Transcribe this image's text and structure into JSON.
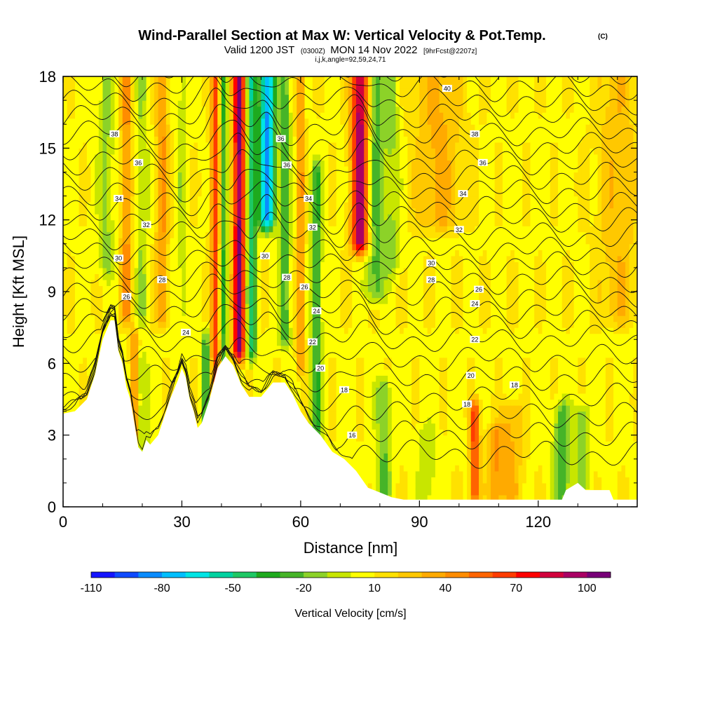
{
  "chart_data": {
    "type": "heatmap",
    "title": "Wind-Parallel Section at Max W: Vertical Velocity & Pot.Temp.",
    "title_mark": "(C)",
    "subtitle_parts": [
      "Valid 1200 JST",
      "(0300Z)",
      "MON 14 Nov 2022",
      "[9hrFcst@2207z]"
    ],
    "subtitle2": "i,j,k,angle=92,59,24,71",
    "xlabel": "Distance [nm]",
    "ylabel": "Height [Kft MSL]",
    "xlim": [
      0,
      145
    ],
    "ylim": [
      0,
      18
    ],
    "x_ticks": [
      0,
      30,
      60,
      90,
      120
    ],
    "y_ticks": [
      0,
      3,
      6,
      9,
      12,
      15,
      18
    ],
    "x_tick_labels": [
      "0",
      "30",
      "60",
      "90",
      "120"
    ],
    "y_tick_labels": [
      "0",
      "3",
      "6",
      "9",
      "12",
      "15",
      "18"
    ],
    "colorbar": {
      "label": "Vertical Velocity [cm/s]",
      "min": -110,
      "max": 110,
      "step": 10,
      "tick_values": [
        -110,
        -80,
        -50,
        -20,
        10,
        40,
        70,
        100
      ],
      "tick_labels": [
        "-110",
        "-80",
        "-50",
        "-20",
        "10",
        "40",
        "70",
        "100"
      ],
      "colors": [
        "#1414ff",
        "#0f4bff",
        "#0a8cff",
        "#00bfff",
        "#00e5e5",
        "#00d2a0",
        "#1ec864",
        "#1eaa1e",
        "#46b428",
        "#8cd228",
        "#c8e600",
        "#ffff00",
        "#ffe100",
        "#ffc800",
        "#ffaa00",
        "#ff8c00",
        "#ff6400",
        "#ff3c00",
        "#ff0000",
        "#d2003c",
        "#aa0064",
        "#780078"
      ]
    },
    "background_w": 8,
    "terrain": [
      [
        0,
        3.9
      ],
      [
        3,
        4.0
      ],
      [
        6,
        4.5
      ],
      [
        8,
        5.5
      ],
      [
        10,
        7.0
      ],
      [
        12,
        7.8
      ],
      [
        13,
        7.8
      ],
      [
        14,
        6.5
      ],
      [
        15,
        6.0
      ],
      [
        16,
        5.0
      ],
      [
        17,
        4.5
      ],
      [
        18,
        3.5
      ],
      [
        19,
        2.5
      ],
      [
        20,
        2.3
      ],
      [
        21,
        2.8
      ],
      [
        22,
        2.6
      ],
      [
        24,
        3.0
      ],
      [
        26,
        4.0
      ],
      [
        27,
        4.5
      ],
      [
        29,
        5.3
      ],
      [
        30,
        5.8
      ],
      [
        31,
        5.4
      ],
      [
        32,
        4.5
      ],
      [
        33,
        4.0
      ],
      [
        34,
        3.3
      ],
      [
        35,
        3.5
      ],
      [
        37,
        4.5
      ],
      [
        39,
        5.8
      ],
      [
        41,
        6.3
      ],
      [
        43,
        5.9
      ],
      [
        45,
        5.1
      ],
      [
        47,
        4.6
      ],
      [
        50,
        4.6
      ],
      [
        53,
        5.2
      ],
      [
        56,
        5.2
      ],
      [
        58,
        4.7
      ],
      [
        60,
        4.0
      ],
      [
        62,
        3.5
      ],
      [
        65,
        3.0
      ],
      [
        68,
        2.3
      ],
      [
        71,
        2.0
      ],
      [
        74,
        1.5
      ],
      [
        77,
        0.8
      ],
      [
        80,
        0.6
      ],
      [
        83,
        0.4
      ],
      [
        86,
        0.3
      ],
      [
        100,
        0.3
      ],
      [
        115,
        0.3
      ],
      [
        126,
        0.3
      ],
      [
        127,
        0.7
      ],
      [
        130,
        1.0
      ],
      [
        132,
        0.7
      ],
      [
        138,
        0.7
      ],
      [
        139,
        0.3
      ],
      [
        145,
        0.3
      ]
    ],
    "w_features": [
      {
        "x": 44.5,
        "y0": 6.5,
        "y1": 18,
        "w": 95,
        "halfwidth": 1.6
      },
      {
        "x": 47.5,
        "y0": 6.5,
        "y1": 18,
        "w": -55,
        "halfwidth": 1.4
      },
      {
        "x": 51.5,
        "y0": 12,
        "y1": 18,
        "w": -90,
        "halfwidth": 2.0
      },
      {
        "x": 38.5,
        "y0": 5,
        "y1": 18,
        "w": 55,
        "halfwidth": 1.2
      },
      {
        "x": 40.5,
        "y0": 5,
        "y1": 18,
        "w": -40,
        "halfwidth": 1.0
      },
      {
        "x": 56,
        "y0": 7,
        "y1": 18,
        "w": -35,
        "halfwidth": 1.4
      },
      {
        "x": 60,
        "y0": 6,
        "y1": 18,
        "w": 35,
        "halfwidth": 1.0
      },
      {
        "x": 64,
        "y0": 3,
        "y1": 14,
        "w": -40,
        "halfwidth": 1.3
      },
      {
        "x": 75,
        "y0": 11,
        "y1": 18,
        "w": 90,
        "halfwidth": 2.2
      },
      {
        "x": 79,
        "y0": 9,
        "y1": 18,
        "w": -35,
        "halfwidth": 2.2
      },
      {
        "x": 83,
        "y0": 10,
        "y1": 18,
        "w": -20,
        "halfwidth": 2.0
      },
      {
        "x": 11,
        "y0": 10,
        "y1": 18,
        "w": -20,
        "halfwidth": 2.0
      },
      {
        "x": 16,
        "y0": 8,
        "y1": 18,
        "w": 35,
        "halfwidth": 1.5
      },
      {
        "x": 20,
        "y0": 8,
        "y1": 18,
        "w": -18,
        "halfwidth": 1.5
      },
      {
        "x": 25,
        "y0": 8,
        "y1": 18,
        "w": 35,
        "halfwidth": 1.5
      },
      {
        "x": 30,
        "y0": 8,
        "y1": 18,
        "w": -15,
        "halfwidth": 1.2
      },
      {
        "x": 36,
        "y0": 3,
        "y1": 7,
        "w": -40,
        "halfwidth": 1.0
      },
      {
        "x": 20,
        "y0": 2,
        "y1": 6,
        "w": -20,
        "halfwidth": 1.5
      },
      {
        "x": 18,
        "y0": 3,
        "y1": 7,
        "w": 40,
        "halfwidth": 1.0
      },
      {
        "x": 81,
        "y0": 0.5,
        "y1": 5,
        "w": -30,
        "halfwidth": 1.8
      },
      {
        "x": 92,
        "y0": 0.5,
        "y1": 3,
        "w": -15,
        "halfwidth": 2.5
      },
      {
        "x": 104,
        "y0": 0.5,
        "y1": 4,
        "w": 60,
        "halfwidth": 1.2
      },
      {
        "x": 109,
        "y0": 0.5,
        "y1": 3,
        "w": 30,
        "halfwidth": 2.0
      },
      {
        "x": 126,
        "y0": 0.5,
        "y1": 4,
        "w": -35,
        "halfwidth": 2.2
      },
      {
        "x": 131,
        "y0": 1,
        "y1": 4,
        "w": -25,
        "halfwidth": 1.8
      },
      {
        "x": 113,
        "y0": 0.5,
        "y1": 4,
        "w": 25,
        "halfwidth": 3.0
      },
      {
        "x": 95,
        "y0": 12,
        "y1": 18,
        "w": 25,
        "halfwidth": 6.0
      },
      {
        "x": 140,
        "y0": 8,
        "y1": 18,
        "w": 20,
        "halfwidth": 5.0
      }
    ],
    "theta_contours": {
      "levels": [
        16,
        17,
        18,
        19,
        20,
        21,
        22,
        23,
        24,
        25,
        26,
        27,
        28,
        29,
        30,
        31,
        32,
        33,
        34,
        35,
        36,
        37,
        38,
        39,
        40
      ],
      "labeled": [
        {
          "text": "40",
          "x": 97,
          "y": 17.5
        },
        {
          "text": "38",
          "x": 13,
          "y": 15.6
        },
        {
          "text": "38",
          "x": 104,
          "y": 15.6
        },
        {
          "text": "36",
          "x": 19,
          "y": 14.4
        },
        {
          "text": "36",
          "x": 55,
          "y": 15.4
        },
        {
          "text": "36",
          "x": 56.5,
          "y": 14.3
        },
        {
          "text": "36",
          "x": 106,
          "y": 14.4
        },
        {
          "text": "34",
          "x": 14,
          "y": 12.9
        },
        {
          "text": "34",
          "x": 62,
          "y": 12.9
        },
        {
          "text": "34",
          "x": 101,
          "y": 13.1
        },
        {
          "text": "32",
          "x": 21,
          "y": 11.8
        },
        {
          "text": "32",
          "x": 63,
          "y": 11.7
        },
        {
          "text": "32",
          "x": 100,
          "y": 11.6
        },
        {
          "text": "30",
          "x": 14,
          "y": 10.4
        },
        {
          "text": "30",
          "x": 51,
          "y": 10.5
        },
        {
          "text": "30",
          "x": 93,
          "y": 10.2
        },
        {
          "text": "28",
          "x": 25,
          "y": 9.5
        },
        {
          "text": "28",
          "x": 56.5,
          "y": 9.6
        },
        {
          "text": "28",
          "x": 93,
          "y": 9.5
        },
        {
          "text": "26",
          "x": 16,
          "y": 8.8
        },
        {
          "text": "26",
          "x": 61,
          "y": 9.2
        },
        {
          "text": "26",
          "x": 105,
          "y": 9.1
        },
        {
          "text": "24",
          "x": 31,
          "y": 7.3
        },
        {
          "text": "24",
          "x": 64,
          "y": 8.2
        },
        {
          "text": "24",
          "x": 104,
          "y": 8.5
        },
        {
          "text": "22",
          "x": 63,
          "y": 6.9
        },
        {
          "text": "22",
          "x": 104,
          "y": 7.0
        },
        {
          "text": "20",
          "x": 65,
          "y": 5.8
        },
        {
          "text": "20",
          "x": 103,
          "y": 5.5
        },
        {
          "text": "18",
          "x": 71,
          "y": 4.9
        },
        {
          "text": "18",
          "x": 114,
          "y": 5.1
        },
        {
          "text": "18",
          "x": 102,
          "y": 4.3
        },
        {
          "text": "16",
          "x": 73,
          "y": 3.0
        }
      ]
    }
  }
}
